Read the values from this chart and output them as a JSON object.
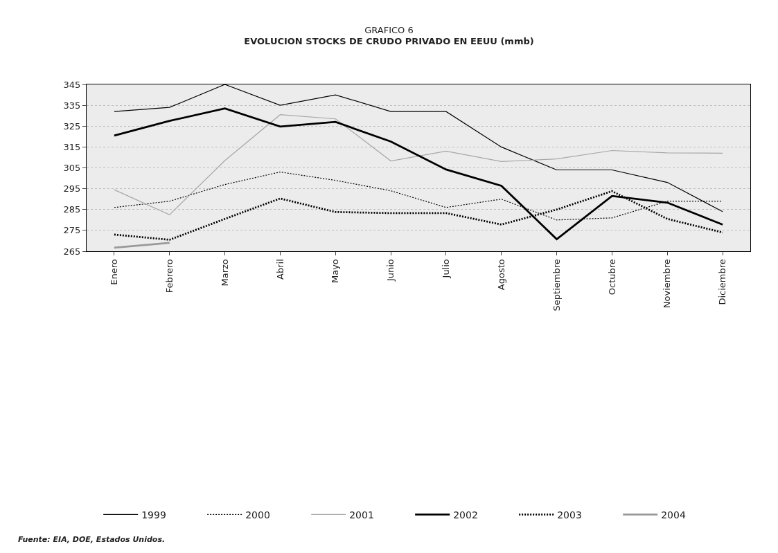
{
  "chart_data": {
    "type": "line",
    "title": "GRAFICO 6",
    "subtitle": "EVOLUCION STOCKS DE CRUDO PRIVADO EN EEUU (mmb)",
    "categories": [
      "Enero",
      "Febrero",
      "Marzo",
      "Abril",
      "Mayo",
      "Junio",
      "Julio",
      "Agosto",
      "Septiembre",
      "Octubre",
      "Noviembre",
      "Diciembre"
    ],
    "series": [
      {
        "name": "1999",
        "color": "#000000",
        "line_style": "solid",
        "values": [
          332,
          334,
          345,
          335,
          340,
          332,
          332,
          315,
          304,
          304,
          298,
          284
        ]
      },
      {
        "name": "2000",
        "color": "#000000",
        "line_style": "dotted",
        "values": [
          286,
          289,
          297,
          303,
          299,
          294,
          286,
          290,
          280,
          281,
          289,
          289
        ]
      },
      {
        "name": "2001",
        "color": "#a6a6a6",
        "line_style": "solid",
        "values": [
          294.5,
          282.5,
          308.5,
          330.5,
          328.5,
          308.3,
          313,
          308,
          309.3,
          313.3,
          312.2,
          312
        ]
      },
      {
        "name": "2002",
        "color": "#000000",
        "line_style": "solid",
        "values": [
          320.5,
          327.5,
          333.5,
          324.8,
          327,
          317.6,
          304.2,
          296.4,
          270.8,
          291.5,
          288.3,
          277.8
        ]
      },
      {
        "name": "2003",
        "color": "#000000",
        "line_style": "dotted",
        "values": [
          273,
          270.5,
          280.5,
          290.3,
          283.8,
          283.3,
          283.3,
          277.8,
          285,
          293.8,
          280.5,
          274
        ]
      },
      {
        "name": "2004",
        "color": "#999999",
        "line_style": "solid",
        "values": [
          266.7,
          269,
          null,
          null,
          null,
          null,
          null,
          null,
          null,
          null,
          null,
          null
        ]
      }
    ],
    "ylim": [
      265,
      345
    ],
    "yticks": [
      265,
      275,
      285,
      295,
      305,
      315,
      325,
      335,
      345
    ],
    "grid": "y",
    "legend": "bottom",
    "marker": "none",
    "annotations": [
      "Fuente: EIA, DOE, Estados Unidos."
    ]
  }
}
